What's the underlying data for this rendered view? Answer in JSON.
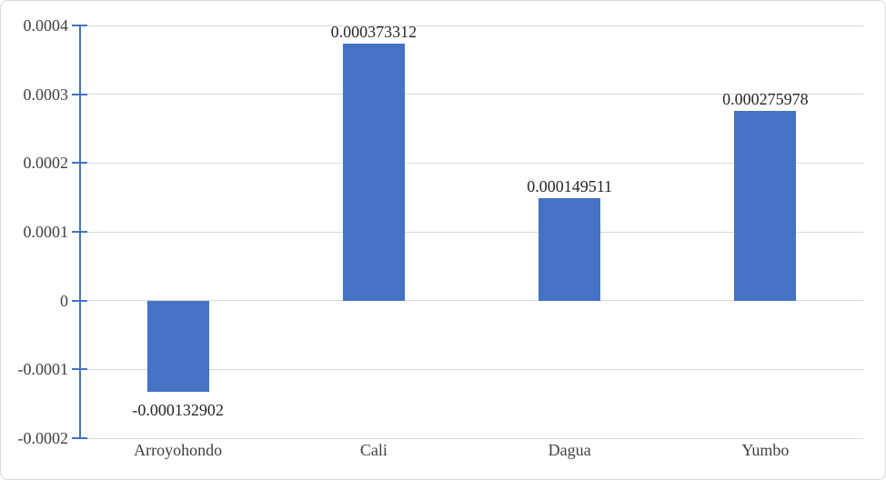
{
  "chart_data": {
    "type": "bar",
    "title": "",
    "xlabel": "",
    "ylabel": "",
    "categories": [
      "Arroyohondo",
      "Cali",
      "Dagua",
      "Yumbo"
    ],
    "values": [
      -0.000132902,
      0.000373312,
      0.000149511,
      0.000275978
    ],
    "data_labels": [
      "-0.000132902",
      "0.000373312",
      "0.000149511",
      "0.000275978"
    ],
    "ylim": [
      -0.0002,
      0.0004
    ],
    "ytick_interval": 0.0001,
    "ytick_labels": [
      "0.0004",
      "0.0003",
      "0.0002",
      "0.0001",
      "0",
      "-0.0001",
      "-0.0002"
    ],
    "grid": true,
    "legend": false,
    "colors": {
      "bar_fill": "#4472c4",
      "axis_line": "#4472c4",
      "gridline": "#d9d9d9",
      "frame_border": "#d9d9d9",
      "axis_text": "#404040",
      "data_label_text": "#262626",
      "background": "#ffffff"
    }
  }
}
